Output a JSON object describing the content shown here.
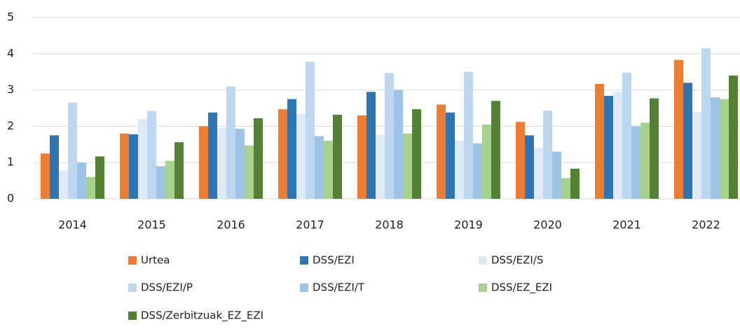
{
  "chart_data": {
    "type": "bar",
    "categories": [
      "2014",
      "2015",
      "2016",
      "2017",
      "2018",
      "2019",
      "2020",
      "2021",
      "2022"
    ],
    "series": [
      {
        "name": "Urtea",
        "color": "#ed7d31",
        "values": [
          1.25,
          1.8,
          2.0,
          2.47,
          2.3,
          2.6,
          2.12,
          3.17,
          3.83
        ]
      },
      {
        "name": "DSS/EZI",
        "color": "#2e75b6",
        "values": [
          1.75,
          1.78,
          2.38,
          2.75,
          2.95,
          2.38,
          1.75,
          2.84,
          3.2
        ]
      },
      {
        "name": "DSS/EZI/S",
        "color": "#deebf7",
        "values": [
          0.78,
          2.2,
          1.95,
          2.35,
          1.77,
          1.6,
          1.4,
          2.95,
          2.4
        ]
      },
      {
        "name": "DSS/EZI/P",
        "color": "#bdd7ee",
        "values": [
          2.65,
          2.42,
          3.1,
          3.78,
          3.47,
          3.5,
          2.43,
          3.48,
          4.15
        ]
      },
      {
        "name": "DSS/EZI/T",
        "color": "#9dc3e6",
        "values": [
          1.0,
          0.9,
          1.93,
          1.73,
          3.0,
          1.53,
          1.3,
          2.0,
          2.8
        ]
      },
      {
        "name": "DSS/EZ_EZI",
        "color": "#a9d18e",
        "values": [
          0.6,
          1.05,
          1.47,
          1.6,
          1.8,
          2.05,
          0.57,
          2.1,
          2.75
        ]
      },
      {
        "name": "DSS/Zerbitzuak_EZ_EZI",
        "color": "#548235",
        "values": [
          1.17,
          1.56,
          2.22,
          2.32,
          2.47,
          2.7,
          0.83,
          2.77,
          3.4
        ]
      }
    ],
    "ylim": [
      0,
      5
    ],
    "yticks": [
      0,
      1,
      2,
      3,
      4,
      5
    ],
    "grid": true
  }
}
